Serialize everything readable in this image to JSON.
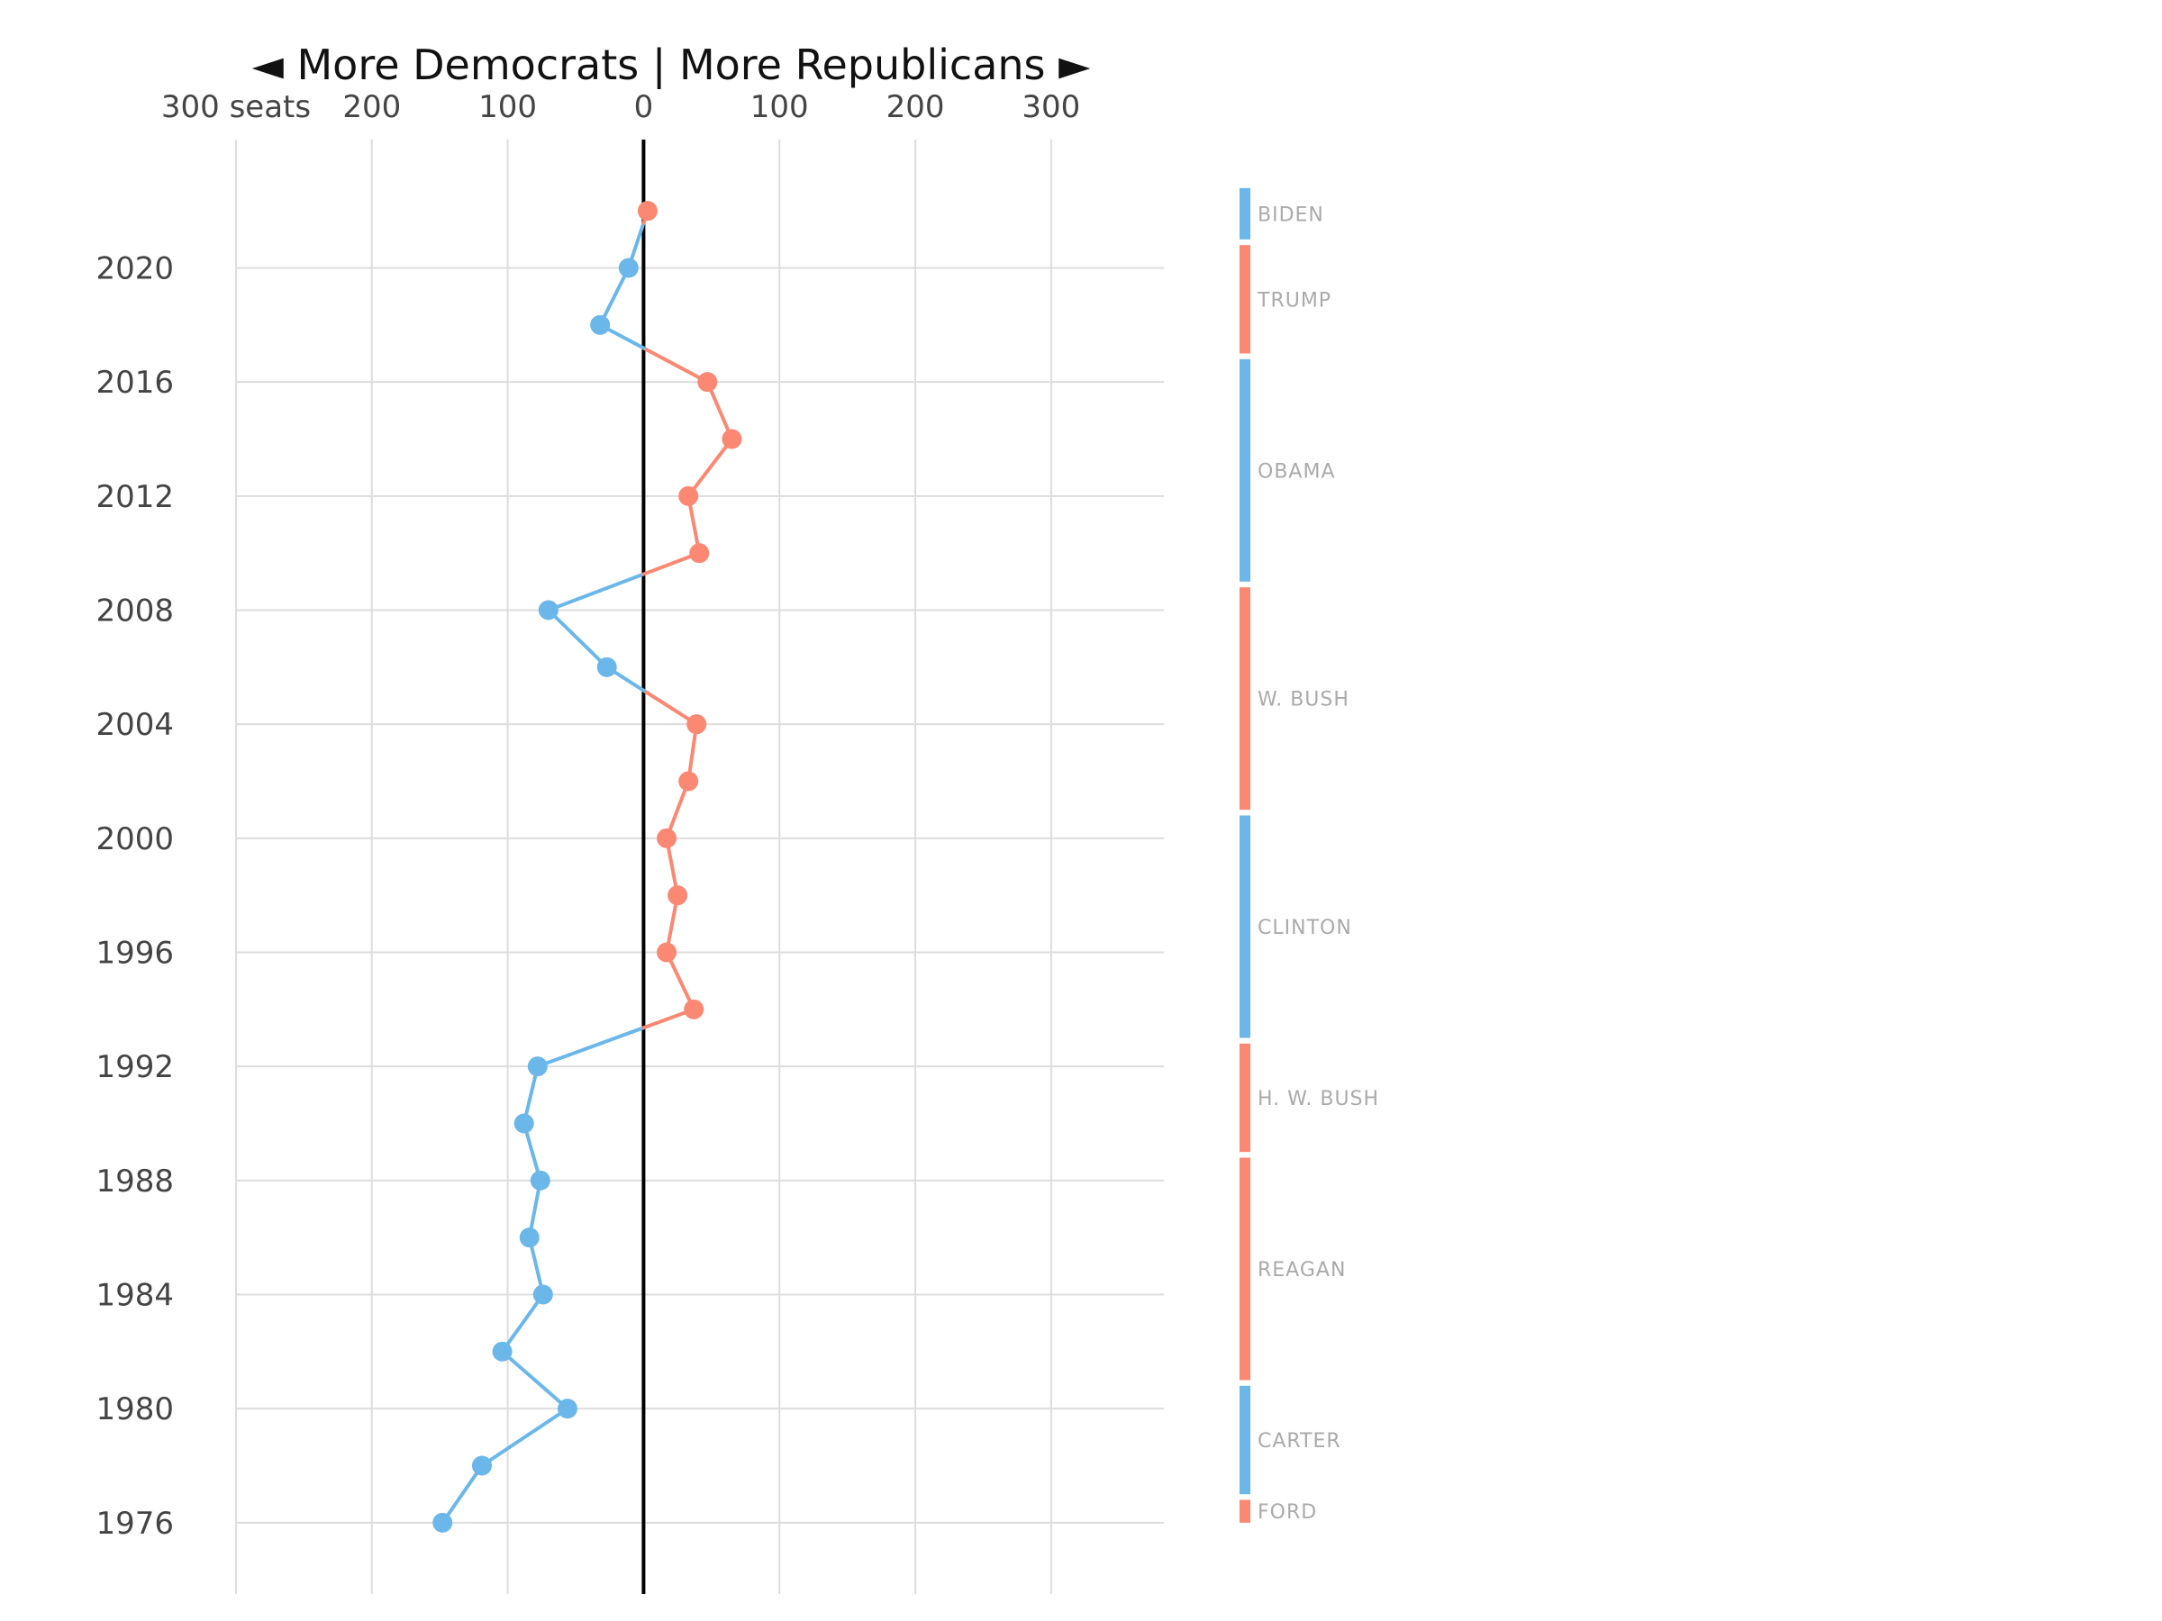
{
  "chart_data": {
    "type": "line",
    "title": "◄ More Democrats | More Republicans ►",
    "xlabel": "",
    "ylabel": "",
    "x_ticks": [
      {
        "value": -300,
        "label": "300 seats"
      },
      {
        "value": -200,
        "label": "200"
      },
      {
        "value": -100,
        "label": "100"
      },
      {
        "value": 0,
        "label": "0"
      },
      {
        "value": 100,
        "label": "100"
      },
      {
        "value": 200,
        "label": "200"
      },
      {
        "value": 300,
        "label": "300"
      }
    ],
    "y_ticks": [
      1976,
      1980,
      1984,
      1988,
      1992,
      1996,
      2000,
      2004,
      2008,
      2012,
      2016,
      2020
    ],
    "xlim": [
      -300,
      383
    ],
    "ylim": [
      1973.5,
      2024.5
    ],
    "grid": true,
    "colors": {
      "democrat": "#6bb7ea",
      "republican": "#fa8872",
      "zero_line": "#000000"
    },
    "series": [
      {
        "x": [
          1976,
          1978,
          1980,
          1982,
          1984,
          1986,
          1988,
          1990,
          1992,
          1994,
          1996,
          1998,
          2000,
          2002,
          2004,
          2006,
          2008,
          2010,
          2012,
          2014,
          2016,
          2018,
          2020,
          2022
        ],
        "values": [
          -148,
          -119,
          -56,
          -104,
          -74,
          -84,
          -76,
          -88,
          -78,
          37,
          17,
          25,
          17,
          33,
          39,
          -27,
          -70,
          41,
          33,
          65,
          47,
          -32,
          -11,
          3
        ]
      }
    ],
    "presidents": [
      {
        "name": "BIDEN",
        "party": "D",
        "start": 2021,
        "end": 2022.8
      },
      {
        "name": "TRUMP",
        "party": "R",
        "start": 2017,
        "end": 2020.8
      },
      {
        "name": "OBAMA",
        "party": "D",
        "start": 2009,
        "end": 2016.8
      },
      {
        "name": "W. BUSH",
        "party": "R",
        "start": 2001,
        "end": 2008.8
      },
      {
        "name": "CLINTON",
        "party": "D",
        "start": 1993,
        "end": 2000.8
      },
      {
        "name": "H. W. BUSH",
        "party": "R",
        "start": 1989,
        "end": 1992.8
      },
      {
        "name": "REAGAN",
        "party": "R",
        "start": 1981,
        "end": 1988.8
      },
      {
        "name": "CARTER",
        "party": "D",
        "start": 1977,
        "end": 1980.8
      },
      {
        "name": "FORD",
        "party": "R",
        "start": 1976,
        "end": 1976.8
      }
    ]
  }
}
